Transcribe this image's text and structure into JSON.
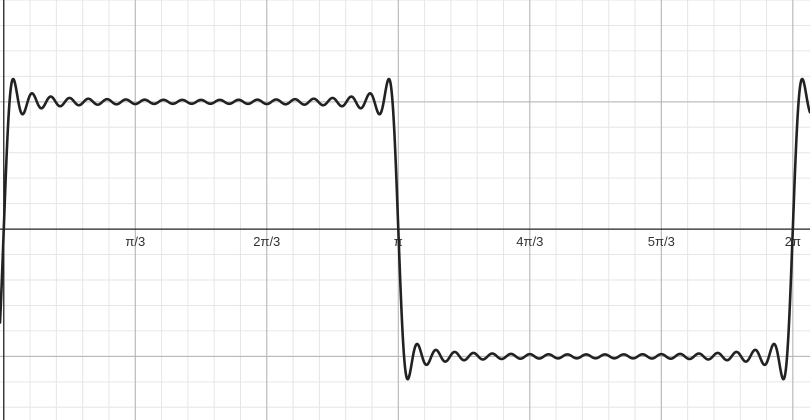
{
  "chart_data": {
    "type": "line",
    "title": "",
    "xlabel": "",
    "ylabel": "",
    "xlim": [
      -0.03,
      6.42
    ],
    "ylim": [
      -1.5,
      1.8
    ],
    "grid": true,
    "x_ticks": [
      {
        "value": 1.0472,
        "label": "π/3"
      },
      {
        "value": 2.0944,
        "label": "2π/3"
      },
      {
        "value": 3.1416,
        "label": "π"
      },
      {
        "value": 4.1888,
        "label": "4π/3"
      },
      {
        "value": 5.236,
        "label": "5π/3"
      },
      {
        "value": 6.2832,
        "label": "2π"
      }
    ],
    "series": [
      {
        "function": "square-wave Fourier partial sum (odd harmonics)",
        "harmonics": 41,
        "amplitude": 1.0,
        "color": "#222222"
      }
    ]
  }
}
